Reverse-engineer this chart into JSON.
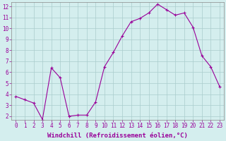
{
  "hours": [
    0,
    1,
    2,
    3,
    4,
    5,
    6,
    7,
    8,
    9,
    10,
    11,
    12,
    13,
    14,
    15,
    16,
    17,
    18,
    19,
    20,
    21,
    22,
    23
  ],
  "windchill": [
    3.8,
    3.5,
    3.2,
    1.7,
    6.4,
    5.5,
    2.0,
    2.1,
    2.1,
    3.3,
    6.5,
    7.8,
    9.3,
    10.6,
    10.9,
    11.4,
    12.2,
    11.7,
    11.2,
    11.4,
    10.1,
    7.5,
    6.5,
    4.7
  ],
  "line_color": "#990099",
  "marker": "+",
  "marker_size": 3,
  "bg_color": "#d4eeee",
  "grid_color": "#aacccc",
  "xlabel": "Windchill (Refroidissement éolien,°C)",
  "xlabel_fontsize": 6.5,
  "xlim_min": -0.5,
  "xlim_max": 23.5,
  "ylim_min": 1.7,
  "ylim_max": 12.4,
  "yticks": [
    2,
    3,
    4,
    5,
    6,
    7,
    8,
    9,
    10,
    11,
    12
  ],
  "xticks": [
    0,
    1,
    2,
    3,
    4,
    5,
    6,
    7,
    8,
    9,
    10,
    11,
    12,
    13,
    14,
    15,
    16,
    17,
    18,
    19,
    20,
    21,
    22,
    23
  ],
  "tick_fontsize": 5.5,
  "line_width": 0.8,
  "marker_edge_width": 0.8,
  "spine_color": "#888888"
}
